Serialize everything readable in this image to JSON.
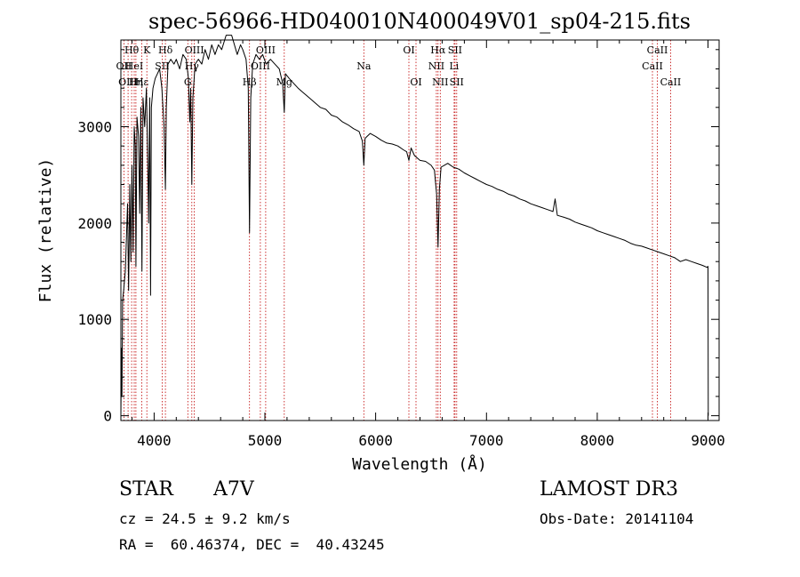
{
  "chart_data": {
    "type": "line",
    "title": "spec-56966-HD040010N400049V01_sp04-215.fits",
    "xlabel": "Wavelength (Å)",
    "ylabel": "Flux (relative)",
    "xlim": [
      3700,
      9100
    ],
    "ylim": [
      -50,
      3900
    ],
    "x_ticks": [
      4000,
      5000,
      6000,
      7000,
      8000,
      9000
    ],
    "x_tick_labels": [
      "4000",
      "5000",
      "6000",
      "7000",
      "8000",
      "9000"
    ],
    "y_ticks": [
      0,
      1000,
      2000,
      3000
    ],
    "y_tick_labels": [
      "0",
      "1000",
      "2000",
      "3000"
    ],
    "grid": false,
    "series": [
      {
        "name": "flux",
        "color": "#000000",
        "points": [
          [
            3700,
            0
          ],
          [
            3705,
            700
          ],
          [
            3710,
            200
          ],
          [
            3715,
            1200
          ],
          [
            3725,
            1300
          ],
          [
            3740,
            1500
          ],
          [
            3760,
            2200
          ],
          [
            3770,
            1300
          ],
          [
            3780,
            2400
          ],
          [
            3790,
            1600
          ],
          [
            3800,
            2600
          ],
          [
            3810,
            1700
          ],
          [
            3820,
            3000
          ],
          [
            3830,
            2800
          ],
          [
            3836,
            1550
          ],
          [
            3845,
            3100
          ],
          [
            3860,
            2900
          ],
          [
            3870,
            2100
          ],
          [
            3880,
            3200
          ],
          [
            3890,
            1500
          ],
          [
            3900,
            3300
          ],
          [
            3915,
            3000
          ],
          [
            3930,
            3400
          ],
          [
            3945,
            2500
          ],
          [
            3950,
            2000
          ],
          [
            3960,
            3300
          ],
          [
            3968,
            1250
          ],
          [
            3975,
            3200
          ],
          [
            3990,
            3400
          ],
          [
            4010,
            3500
          ],
          [
            4030,
            3550
          ],
          [
            4050,
            3600
          ],
          [
            4070,
            3400
          ],
          [
            4090,
            3000
          ],
          [
            4102,
            2350
          ],
          [
            4110,
            3200
          ],
          [
            4125,
            3650
          ],
          [
            4150,
            3700
          ],
          [
            4180,
            3650
          ],
          [
            4200,
            3700
          ],
          [
            4230,
            3600
          ],
          [
            4260,
            3750
          ],
          [
            4290,
            3700
          ],
          [
            4310,
            3500
          ],
          [
            4322,
            3050
          ],
          [
            4330,
            3400
          ],
          [
            4340,
            2400
          ],
          [
            4350,
            3300
          ],
          [
            4370,
            3650
          ],
          [
            4400,
            3700
          ],
          [
            4430,
            3650
          ],
          [
            4460,
            3800
          ],
          [
            4490,
            3700
          ],
          [
            4520,
            3850
          ],
          [
            4550,
            3750
          ],
          [
            4580,
            3850
          ],
          [
            4610,
            3800
          ],
          [
            4650,
            3950
          ],
          [
            4700,
            3950
          ],
          [
            4750,
            3750
          ],
          [
            4780,
            3850
          ],
          [
            4800,
            3800
          ],
          [
            4830,
            3700
          ],
          [
            4850,
            3400
          ],
          [
            4861,
            1900
          ],
          [
            4872,
            3300
          ],
          [
            4890,
            3650
          ],
          [
            4920,
            3750
          ],
          [
            4950,
            3700
          ],
          [
            4980,
            3750
          ],
          [
            5010,
            3650
          ],
          [
            5050,
            3700
          ],
          [
            5090,
            3650
          ],
          [
            5130,
            3600
          ],
          [
            5160,
            3450
          ],
          [
            5175,
            3150
          ],
          [
            5185,
            3550
          ],
          [
            5220,
            3500
          ],
          [
            5260,
            3450
          ],
          [
            5300,
            3400
          ],
          [
            5350,
            3350
          ],
          [
            5400,
            3300
          ],
          [
            5450,
            3250
          ],
          [
            5500,
            3200
          ],
          [
            5550,
            3180
          ],
          [
            5600,
            3120
          ],
          [
            5650,
            3100
          ],
          [
            5700,
            3050
          ],
          [
            5750,
            3020
          ],
          [
            5800,
            2980
          ],
          [
            5850,
            2950
          ],
          [
            5880,
            2850
          ],
          [
            5893,
            2600
          ],
          [
            5905,
            2880
          ],
          [
            5950,
            2930
          ],
          [
            6000,
            2900
          ],
          [
            6050,
            2860
          ],
          [
            6100,
            2830
          ],
          [
            6150,
            2820
          ],
          [
            6200,
            2800
          ],
          [
            6250,
            2760
          ],
          [
            6280,
            2740
          ],
          [
            6300,
            2650
          ],
          [
            6320,
            2780
          ],
          [
            6350,
            2700
          ],
          [
            6400,
            2650
          ],
          [
            6450,
            2640
          ],
          [
            6500,
            2600
          ],
          [
            6530,
            2550
          ],
          [
            6550,
            2300
          ],
          [
            6563,
            1750
          ],
          [
            6575,
            2350
          ],
          [
            6590,
            2580
          ],
          [
            6620,
            2600
          ],
          [
            6650,
            2620
          ],
          [
            6700,
            2580
          ],
          [
            6750,
            2560
          ],
          [
            6800,
            2520
          ],
          [
            6850,
            2490
          ],
          [
            6900,
            2460
          ],
          [
            6950,
            2430
          ],
          [
            7000,
            2400
          ],
          [
            7050,
            2380
          ],
          [
            7100,
            2350
          ],
          [
            7150,
            2330
          ],
          [
            7200,
            2300
          ],
          [
            7250,
            2280
          ],
          [
            7300,
            2250
          ],
          [
            7350,
            2230
          ],
          [
            7400,
            2200
          ],
          [
            7450,
            2180
          ],
          [
            7500,
            2160
          ],
          [
            7550,
            2140
          ],
          [
            7600,
            2120
          ],
          [
            7620,
            2250
          ],
          [
            7640,
            2080
          ],
          [
            7700,
            2060
          ],
          [
            7750,
            2040
          ],
          [
            7800,
            2010
          ],
          [
            7850,
            1990
          ],
          [
            7900,
            1970
          ],
          [
            7950,
            1950
          ],
          [
            8000,
            1920
          ],
          [
            8050,
            1900
          ],
          [
            8100,
            1880
          ],
          [
            8150,
            1860
          ],
          [
            8200,
            1840
          ],
          [
            8250,
            1820
          ],
          [
            8300,
            1790
          ],
          [
            8350,
            1770
          ],
          [
            8400,
            1760
          ],
          [
            8450,
            1740
          ],
          [
            8500,
            1720
          ],
          [
            8550,
            1700
          ],
          [
            8600,
            1680
          ],
          [
            8650,
            1660
          ],
          [
            8700,
            1640
          ],
          [
            8750,
            1600
          ],
          [
            8800,
            1620
          ],
          [
            8850,
            1600
          ],
          [
            8900,
            1580
          ],
          [
            8950,
            1560
          ],
          [
            8990,
            1540
          ],
          [
            9000,
            1550
          ],
          [
            9002,
            0
          ]
        ]
      }
    ],
    "line_markers": [
      {
        "label": "Hθ",
        "wavelength": 3797,
        "row": 0
      },
      {
        "label": "OII",
        "wavelength": 3727,
        "row": 1
      },
      {
        "label": "OIII",
        "wavelength": 3765,
        "row": 2
      },
      {
        "label": "HeI",
        "wavelength": 3820,
        "row": 1
      },
      {
        "label": "Hη",
        "wavelength": 3836,
        "row": 2
      },
      {
        "label": "K",
        "wavelength": 3934,
        "row": 0
      },
      {
        "label": "Hε",
        "wavelength": 3889,
        "row": 2
      },
      {
        "label": "SII",
        "wavelength": 4072,
        "row": 1
      },
      {
        "label": "Hδ",
        "wavelength": 4102,
        "row": 0
      },
      {
        "label": "G",
        "wavelength": 4304,
        "row": 2
      },
      {
        "label": "OIII",
        "wavelength": 4363,
        "row": 0
      },
      {
        "label": "Hγ",
        "wavelength": 4340,
        "row": 1
      },
      {
        "label": "Hβ",
        "wavelength": 4861,
        "row": 2
      },
      {
        "label": "OIII",
        "wavelength": 5007,
        "row": 0
      },
      {
        "label": "OIII",
        "wavelength": 4959,
        "row": 1
      },
      {
        "label": "Mg",
        "wavelength": 5175,
        "row": 2
      },
      {
        "label": "Na",
        "wavelength": 5893,
        "row": 1
      },
      {
        "label": "OI",
        "wavelength": 6300,
        "row": 0
      },
      {
        "label": "OI",
        "wavelength": 6364,
        "row": 2
      },
      {
        "label": "Hα",
        "wavelength": 6563,
        "row": 0
      },
      {
        "label": "NII",
        "wavelength": 6548,
        "row": 1
      },
      {
        "label": "NII",
        "wavelength": 6583,
        "row": 2
      },
      {
        "label": "SII",
        "wavelength": 6716,
        "row": 0
      },
      {
        "label": "Li",
        "wavelength": 6708,
        "row": 1
      },
      {
        "label": "SII",
        "wavelength": 6731,
        "row": 2
      },
      {
        "label": "CaII",
        "wavelength": 8542,
        "row": 0
      },
      {
        "label": "CaII",
        "wavelength": 8498,
        "row": 1
      },
      {
        "label": "CaII",
        "wavelength": 8662,
        "row": 2
      }
    ],
    "marker_color": "#c00000"
  },
  "info": {
    "object_class": "STAR",
    "subclass": "A7V",
    "survey": "LAMOST DR3",
    "cz": "cz = 24.5 ± 9.2 km/s",
    "obs_date": "Obs-Date: 20141104",
    "coords": "RA =  60.46374, DEC =  40.43245"
  }
}
